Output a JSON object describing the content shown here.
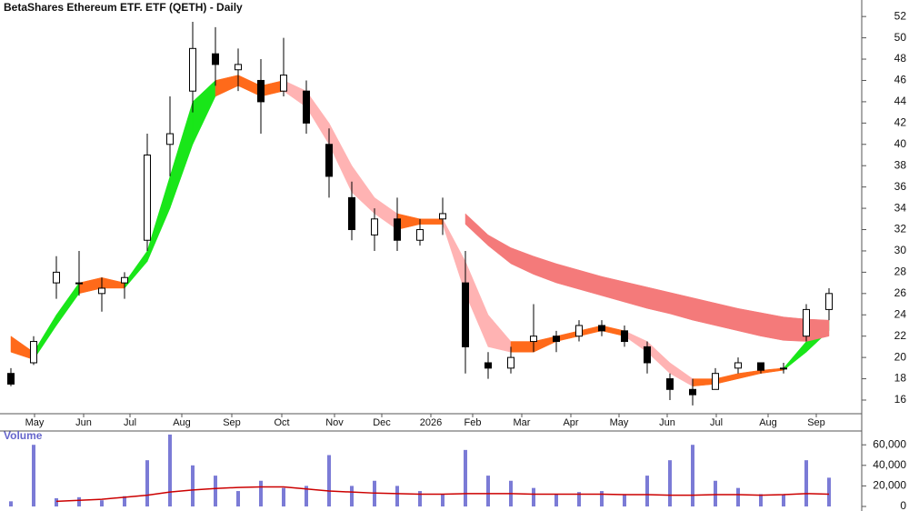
{
  "chart_data": [
    {
      "type": "candlestick",
      "title": "BetaShares Ethereum ETF. ETF (QETH) - Daily",
      "open": [
        18.5,
        19.5,
        27,
        27,
        26,
        27,
        31,
        40,
        45,
        48.5,
        47,
        46,
        45,
        45,
        40,
        35,
        31.5,
        33,
        31,
        33,
        27,
        19.5,
        19,
        21.5,
        22,
        22,
        23,
        22.5,
        21,
        18,
        17,
        17,
        19,
        19.5,
        19,
        22,
        24.5
      ],
      "high": [
        19,
        22,
        29.5,
        30,
        27.5,
        28,
        41,
        44.5,
        51.5,
        51,
        49,
        48,
        50,
        46,
        41.5,
        36.5,
        34,
        35,
        33,
        35,
        30,
        20.5,
        21,
        25,
        22.5,
        23.5,
        23.5,
        23,
        21.5,
        18.5,
        18,
        19,
        20,
        19.5,
        19.5,
        25,
        26.5
      ],
      "low": [
        17.3,
        19.3,
        25.5,
        25.8,
        24.3,
        25.5,
        30,
        37,
        43,
        45.5,
        45,
        41,
        44.5,
        41,
        35,
        31,
        30,
        30,
        30.5,
        31.5,
        18.5,
        18,
        18.5,
        20.5,
        20.5,
        21.5,
        22,
        21,
        18.5,
        16,
        15.5,
        17,
        18.5,
        18.5,
        18.5,
        21.5,
        23.5
      ],
      "close": [
        17.5,
        21.5,
        28,
        27,
        26.5,
        27.5,
        39,
        41,
        49,
        47.5,
        47.5,
        44,
        46.5,
        42,
        37,
        32,
        33,
        31,
        32,
        33.5,
        21,
        19,
        20,
        22,
        21.5,
        23,
        22.5,
        21.5,
        19.5,
        17,
        16.5,
        18.5,
        19.5,
        18.8,
        19,
        24.5,
        26
      ],
      "up_color": "#ffffff",
      "down_color": "#000000",
      "ribbons": [
        {
          "upper": [
            22,
            20.5,
            24,
            27,
            27.5,
            27,
            30,
            37,
            44,
            46,
            46.5,
            45.5,
            46,
            45,
            42,
            38,
            35,
            33.5,
            33,
            33,
            29,
            24,
            21.5,
            21.5,
            22,
            22.5,
            23,
            22.5,
            21.5,
            19.5,
            18,
            18,
            18.5,
            18.8,
            19,
            21.5,
            23.5
          ],
          "lower": [
            20.5,
            19.8,
            23,
            26,
            26.5,
            26.5,
            29,
            34,
            40,
            44.5,
            45.5,
            44.5,
            45,
            43.5,
            40,
            35.5,
            33.5,
            32,
            32.5,
            32.5,
            26,
            21,
            20.5,
            20.5,
            21.5,
            22,
            22.5,
            22,
            20.5,
            18.5,
            17.3,
            17.5,
            18,
            18.5,
            18.8,
            20.5,
            22.5
          ],
          "colors": {
            "up": "#19e619",
            "down": "#ffb3b3",
            "flat": "#ff6a1a"
          }
        },
        {
          "upper": [
            null,
            null,
            null,
            null,
            null,
            null,
            null,
            null,
            null,
            null,
            null,
            null,
            null,
            null,
            null,
            null,
            null,
            null,
            null,
            null,
            33.5,
            31.5,
            30.3,
            29.5,
            28.8,
            28.2,
            27.6,
            27.1,
            26.6,
            26.1,
            25.6,
            25.1,
            24.6,
            24.2,
            23.8,
            23.6,
            23.5
          ],
          "lower": [
            null,
            null,
            null,
            null,
            null,
            null,
            null,
            null,
            null,
            null,
            null,
            null,
            null,
            null,
            null,
            null,
            null,
            null,
            null,
            null,
            32.5,
            30.5,
            28.8,
            27.8,
            27,
            26.4,
            25.8,
            25.2,
            24.6,
            24.1,
            23.5,
            23,
            22.5,
            22,
            21.6,
            21.5,
            22
          ],
          "colors": {
            "up": "#f47a7a",
            "down": "#f47a7a",
            "flat": "#f47a7a"
          }
        }
      ],
      "xlim": [
        -0.48,
        37.44
      ],
      "xticks": [
        {
          "value": 1.04,
          "label": "May"
        },
        {
          "value": 3.2,
          "label": "Jun"
        },
        {
          "value": 5.24,
          "label": "Jul"
        },
        {
          "value": 7.52,
          "label": "Aug"
        },
        {
          "value": 9.72,
          "label": "Sep"
        },
        {
          "value": 11.92,
          "label": "Oct"
        },
        {
          "value": 14.24,
          "label": "Nov"
        },
        {
          "value": 16.32,
          "label": "Dec"
        },
        {
          "value": 18.48,
          "label": "2026"
        },
        {
          "value": 20.32,
          "label": "Feb"
        },
        {
          "value": 22.48,
          "label": "Mar"
        },
        {
          "value": 24.64,
          "label": "Apr"
        },
        {
          "value": 26.76,
          "label": "May"
        },
        {
          "value": 28.88,
          "label": "Jun"
        },
        {
          "value": 31.04,
          "label": "Jul"
        },
        {
          "value": 33.32,
          "label": "Aug"
        },
        {
          "value": 35.44,
          "label": "Sep"
        }
      ],
      "ylim": [
        14.72,
        53.55
      ],
      "yticks": [
        16,
        18,
        20,
        22,
        24,
        26,
        28,
        30,
        32,
        34,
        36,
        38,
        40,
        42,
        44,
        46,
        48,
        50,
        52
      ]
    },
    {
      "type": "bar",
      "title": "Volume",
      "values": [
        5000,
        60000,
        8000,
        9000,
        6000,
        10000,
        45000,
        70000,
        40000,
        30000,
        15000,
        25000,
        18000,
        20000,
        50000,
        20000,
        25000,
        20000,
        15000,
        12000,
        55000,
        30000,
        25000,
        18000,
        12000,
        14000,
        15000,
        12000,
        30000,
        45000,
        60000,
        25000,
        18000,
        12000,
        12000,
        45000,
        28000
      ],
      "color": "#7b7bd6",
      "average": [
        null,
        null,
        5000,
        6000,
        7000,
        9000,
        11000,
        14000,
        16000,
        17500,
        18500,
        19000,
        19000,
        17000,
        15000,
        14000,
        13000,
        12500,
        12000,
        12000,
        12500,
        12500,
        12500,
        12000,
        12000,
        12000,
        12000,
        11500,
        11500,
        11000,
        11000,
        11500,
        11500,
        11000,
        11500,
        12500,
        12000
      ],
      "average_color": "#cc0000",
      "ylim": [
        0,
        77000
      ],
      "yticks": [
        0,
        {
          "value": 20000,
          "label": "20,000"
        },
        {
          "value": 40000,
          "label": "40,000"
        },
        {
          "value": 60000,
          "label": "60,000"
        }
      ]
    }
  ]
}
